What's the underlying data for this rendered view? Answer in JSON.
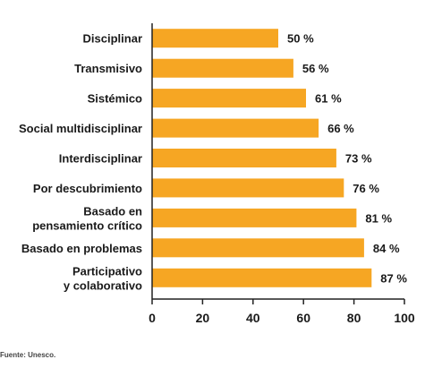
{
  "chart_data": {
    "type": "bar",
    "orientation": "horizontal",
    "categories": [
      [
        "Disciplinar"
      ],
      [
        "Transmisivo"
      ],
      [
        "Sistémico"
      ],
      [
        "Social multidisciplinar"
      ],
      [
        "Interdisciplinar"
      ],
      [
        "Por descubrimiento"
      ],
      [
        "Basado en",
        "pensamiento crítico"
      ],
      [
        "Basado en problemas"
      ],
      [
        "Participativo",
        "y colaborativo"
      ]
    ],
    "values": [
      50,
      56,
      61,
      66,
      73,
      76,
      81,
      84,
      87
    ],
    "value_labels": [
      "50 %",
      "56 %",
      "61 %",
      "66 %",
      "73 %",
      "76 %",
      "81 %",
      "84 %",
      "87 %"
    ],
    "xlim": [
      0,
      100
    ],
    "xticks": [
      "0",
      "20",
      "40",
      "60",
      "80",
      "100"
    ],
    "bar_color": "#F6A623",
    "axis_color": "#222222",
    "grid": false
  },
  "source": "Fuente: Unesco."
}
